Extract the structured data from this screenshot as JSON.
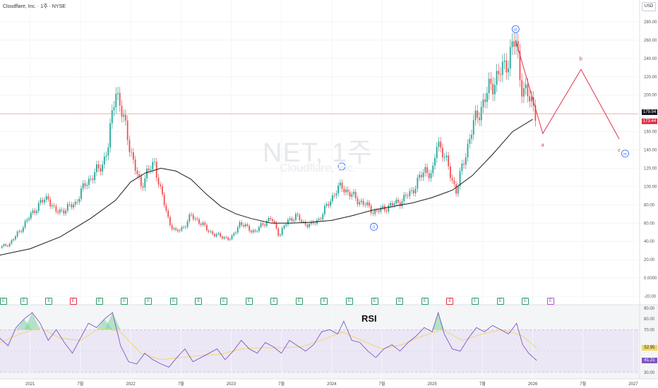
{
  "header": {
    "title": "Cloudflare, Inc. · 1주 · NYSE"
  },
  "watermark": {
    "symbol": "NET, 1주",
    "name": "Cloudflare, Inc."
  },
  "currency": "USD",
  "rsi_label": "RSI",
  "colors": {
    "up": "#26a69a",
    "down": "#ef5350",
    "ma": "#1a1a1a",
    "wave": "#e0334b",
    "label_blue": "#2962ff",
    "rsi_line": "#7e57c2",
    "rsi_ma": "#f1d660"
  },
  "chart_data": [
    {
      "type": "line",
      "x_ticks": [
        "2021",
        "7월",
        "2022",
        "7월",
        "2023",
        "7월",
        "2024",
        "7월",
        "2025",
        "7월",
        "2026",
        "7월",
        "2027"
      ],
      "y_ticks": [
        "280.00",
        "260.00",
        "240.00",
        "220.00",
        "200.00",
        "180.00",
        "160.00",
        "140.00",
        "120.00",
        "100.00",
        "80.00",
        "60.00",
        "40.00",
        "20.00",
        "0.0000",
        "-20.00"
      ],
      "ylim": [
        -25,
        290
      ],
      "last_price": "179.54",
      "ma_value": "173.44",
      "series": [
        {
          "points": [
            [
              2020.7,
              33
            ],
            [
              2020.8,
              38
            ],
            [
              2020.9,
              52
            ],
            [
              2021.0,
              68
            ],
            [
              2021.1,
              82
            ],
            [
              2021.18,
              88
            ],
            [
              2021.25,
              72
            ],
            [
              2021.35,
              75
            ],
            [
              2021.45,
              82
            ],
            [
              2021.55,
              103
            ],
            [
              2021.65,
              115
            ],
            [
              2021.72,
              125
            ],
            [
              2021.78,
              145
            ],
            [
              2021.85,
              210
            ],
            [
              2021.9,
              185
            ],
            [
              2021.96,
              160
            ],
            [
              2022.03,
              125
            ],
            [
              2022.1,
              100
            ],
            [
              2022.16,
              115
            ],
            [
              2022.24,
              125
            ],
            [
              2022.3,
              95
            ],
            [
              2022.38,
              62
            ],
            [
              2022.45,
              50
            ],
            [
              2022.52,
              55
            ],
            [
              2022.6,
              68
            ],
            [
              2022.68,
              62
            ],
            [
              2022.76,
              53
            ],
            [
              2022.84,
              47
            ],
            [
              2022.92,
              45
            ],
            [
              2023.0,
              42
            ],
            [
              2023.08,
              60
            ],
            [
              2023.16,
              55
            ],
            [
              2023.24,
              50
            ],
            [
              2023.32,
              60
            ],
            [
              2023.4,
              65
            ],
            [
              2023.48,
              47
            ],
            [
              2023.56,
              62
            ],
            [
              2023.64,
              68
            ],
            [
              2023.72,
              60
            ],
            [
              2023.8,
              58
            ],
            [
              2023.88,
              65
            ],
            [
              2023.96,
              80
            ],
            [
              2024.04,
              95
            ],
            [
              2024.1,
              100
            ],
            [
              2024.18,
              92
            ],
            [
              2024.26,
              85
            ],
            [
              2024.34,
              80
            ],
            [
              2024.42,
              72
            ],
            [
              2024.5,
              75
            ],
            [
              2024.6,
              80
            ],
            [
              2024.7,
              85
            ],
            [
              2024.8,
              95
            ],
            [
              2024.88,
              110
            ],
            [
              2024.94,
              120
            ],
            [
              2025.0,
              110
            ],
            [
              2025.05,
              150
            ],
            [
              2025.1,
              140
            ],
            [
              2025.16,
              120
            ],
            [
              2025.24,
              95
            ],
            [
              2025.32,
              130
            ],
            [
              2025.4,
              165
            ],
            [
              2025.48,
              185
            ],
            [
              2025.56,
              205
            ],
            [
              2025.64,
              220
            ],
            [
              2025.72,
              230
            ],
            [
              2025.78,
              248
            ],
            [
              2025.83,
              260
            ],
            [
              2025.88,
              215
            ],
            [
              2025.94,
              200
            ],
            [
              2026.0,
              190
            ],
            [
              2026.04,
              179.54
            ]
          ]
        }
      ],
      "ma_series": [
        [
          2020.7,
          25
        ],
        [
          2021.0,
          32
        ],
        [
          2021.3,
          45
        ],
        [
          2021.6,
          65
        ],
        [
          2021.85,
          85
        ],
        [
          2022.0,
          105
        ],
        [
          2022.15,
          115
        ],
        [
          2022.3,
          120
        ],
        [
          2022.45,
          117
        ],
        [
          2022.6,
          108
        ],
        [
          2022.75,
          92
        ],
        [
          2022.9,
          78
        ],
        [
          2023.05,
          70
        ],
        [
          2023.2,
          65
        ],
        [
          2023.4,
          60
        ],
        [
          2023.6,
          60
        ],
        [
          2023.8,
          61
        ],
        [
          2024.0,
          63
        ],
        [
          2024.2,
          68
        ],
        [
          2024.4,
          74
        ],
        [
          2024.6,
          78
        ],
        [
          2024.8,
          82
        ],
        [
          2025.0,
          88
        ],
        [
          2025.2,
          96
        ],
        [
          2025.4,
          112
        ],
        [
          2025.6,
          135
        ],
        [
          2025.8,
          160
        ],
        [
          2026.0,
          173.44
        ]
      ],
      "wave_path": [
        [
          2025.83,
          260
        ],
        [
          2026.1,
          158
        ],
        [
          2026.48,
          228
        ],
        [
          2026.86,
          152
        ]
      ],
      "wave_labels": [
        {
          "text": "i",
          "x": 2024.1,
          "y": 122,
          "style": "circle"
        },
        {
          "text": "ii",
          "x": 2024.42,
          "y": 56,
          "style": "circle"
        },
        {
          "text": "iii",
          "x": 2025.83,
          "y": 272,
          "style": "circle"
        },
        {
          "text": "a",
          "x": 2026.1,
          "y": 146,
          "style": "plain"
        },
        {
          "text": "b",
          "x": 2026.48,
          "y": 240,
          "style": "plain"
        },
        {
          "text": "c",
          "x": 2026.86,
          "y": 140,
          "style": "plain"
        },
        {
          "text": "iv",
          "x": 2026.92,
          "y": 136,
          "style": "circle"
        }
      ],
      "earnings": [
        {
          "x": 2020.7,
          "label": "E",
          "kind": "e"
        },
        {
          "x": 2020.93,
          "label": "E",
          "kind": "e"
        },
        {
          "x": 2021.18,
          "label": "E",
          "kind": "e"
        },
        {
          "x": 2021.42,
          "label": "E",
          "kind": "m"
        },
        {
          "x": 2021.68,
          "label": "E",
          "kind": "e"
        },
        {
          "x": 2021.93,
          "label": "E",
          "kind": "e"
        },
        {
          "x": 2022.17,
          "label": "E",
          "kind": "e"
        },
        {
          "x": 2022.42,
          "label": "E",
          "kind": "e"
        },
        {
          "x": 2022.67,
          "label": "E",
          "kind": "e"
        },
        {
          "x": 2022.92,
          "label": "E",
          "kind": "e"
        },
        {
          "x": 2023.17,
          "label": "E",
          "kind": "e"
        },
        {
          "x": 2023.42,
          "label": "E",
          "kind": "e"
        },
        {
          "x": 2023.67,
          "label": "E",
          "kind": "e"
        },
        {
          "x": 2023.92,
          "label": "E",
          "kind": "e"
        },
        {
          "x": 2024.17,
          "label": "E",
          "kind": "e"
        },
        {
          "x": 2024.42,
          "label": "E",
          "kind": "e"
        },
        {
          "x": 2024.67,
          "label": "E",
          "kind": "e"
        },
        {
          "x": 2024.92,
          "label": "E",
          "kind": "e"
        },
        {
          "x": 2025.17,
          "label": "E",
          "kind": "m"
        },
        {
          "x": 2025.42,
          "label": "E",
          "kind": "e"
        },
        {
          "x": 2025.67,
          "label": "E",
          "kind": "e"
        },
        {
          "x": 2025.92,
          "label": "E",
          "kind": "e"
        },
        {
          "x": 2026.17,
          "label": "E",
          "kind": "f"
        }
      ]
    },
    {
      "type": "line",
      "title": "RSI",
      "y_ticks": [
        "90.00",
        "80.00",
        "70.00",
        "30.00"
      ],
      "ylim": [
        25,
        92
      ],
      "upper_band": 70,
      "lower_band": 30,
      "values_shown": [
        "52.95",
        "41.21"
      ],
      "rsi": [
        [
          2020.7,
          62
        ],
        [
          2020.78,
          55
        ],
        [
          2020.86,
          72
        ],
        [
          2020.94,
          80
        ],
        [
          2021.02,
          86
        ],
        [
          2021.1,
          76
        ],
        [
          2021.18,
          60
        ],
        [
          2021.26,
          70
        ],
        [
          2021.34,
          58
        ],
        [
          2021.42,
          48
        ],
        [
          2021.5,
          62
        ],
        [
          2021.58,
          76
        ],
        [
          2021.66,
          72
        ],
        [
          2021.74,
          80
        ],
        [
          2021.82,
          86
        ],
        [
          2021.9,
          55
        ],
        [
          2021.98,
          40
        ],
        [
          2022.06,
          38
        ],
        [
          2022.14,
          48
        ],
        [
          2022.22,
          42
        ],
        [
          2022.3,
          38
        ],
        [
          2022.38,
          35
        ],
        [
          2022.46,
          44
        ],
        [
          2022.54,
          52
        ],
        [
          2022.62,
          40
        ],
        [
          2022.7,
          44
        ],
        [
          2022.78,
          48
        ],
        [
          2022.86,
          52
        ],
        [
          2022.94,
          42
        ],
        [
          2023.02,
          50
        ],
        [
          2023.1,
          60
        ],
        [
          2023.18,
          52
        ],
        [
          2023.26,
          48
        ],
        [
          2023.34,
          58
        ],
        [
          2023.42,
          54
        ],
        [
          2023.5,
          48
        ],
        [
          2023.58,
          60
        ],
        [
          2023.66,
          55
        ],
        [
          2023.74,
          50
        ],
        [
          2023.82,
          56
        ],
        [
          2023.9,
          68
        ],
        [
          2023.98,
          70
        ],
        [
          2024.06,
          66
        ],
        [
          2024.12,
          78
        ],
        [
          2024.2,
          60
        ],
        [
          2024.28,
          58
        ],
        [
          2024.36,
          50
        ],
        [
          2024.44,
          44
        ],
        [
          2024.52,
          52
        ],
        [
          2024.6,
          56
        ],
        [
          2024.68,
          50
        ],
        [
          2024.76,
          58
        ],
        [
          2024.84,
          64
        ],
        [
          2024.92,
          72
        ],
        [
          2025.0,
          68
        ],
        [
          2025.06,
          86
        ],
        [
          2025.12,
          66
        ],
        [
          2025.2,
          52
        ],
        [
          2025.28,
          50
        ],
        [
          2025.36,
          62
        ],
        [
          2025.44,
          72
        ],
        [
          2025.52,
          68
        ],
        [
          2025.6,
          74
        ],
        [
          2025.68,
          70
        ],
        [
          2025.76,
          66
        ],
        [
          2025.84,
          76
        ],
        [
          2025.9,
          56
        ],
        [
          2025.96,
          48
        ],
        [
          2026.04,
          41.21
        ]
      ],
      "rsi_ma": [
        [
          2020.7,
          58
        ],
        [
          2020.9,
          66
        ],
        [
          2021.1,
          72
        ],
        [
          2021.3,
          62
        ],
        [
          2021.5,
          60
        ],
        [
          2021.7,
          72
        ],
        [
          2021.9,
          68
        ],
        [
          2022.1,
          48
        ],
        [
          2022.3,
          42
        ],
        [
          2022.5,
          44
        ],
        [
          2022.7,
          46
        ],
        [
          2022.9,
          47
        ],
        [
          2023.1,
          52
        ],
        [
          2023.3,
          53
        ],
        [
          2023.5,
          53
        ],
        [
          2023.7,
          54
        ],
        [
          2023.9,
          60
        ],
        [
          2024.1,
          68
        ],
        [
          2024.3,
          60
        ],
        [
          2024.5,
          52
        ],
        [
          2024.7,
          56
        ],
        [
          2024.9,
          64
        ],
        [
          2025.1,
          70
        ],
        [
          2025.3,
          60
        ],
        [
          2025.5,
          66
        ],
        [
          2025.7,
          70
        ],
        [
          2025.9,
          64
        ],
        [
          2026.04,
          52.95
        ]
      ]
    }
  ]
}
